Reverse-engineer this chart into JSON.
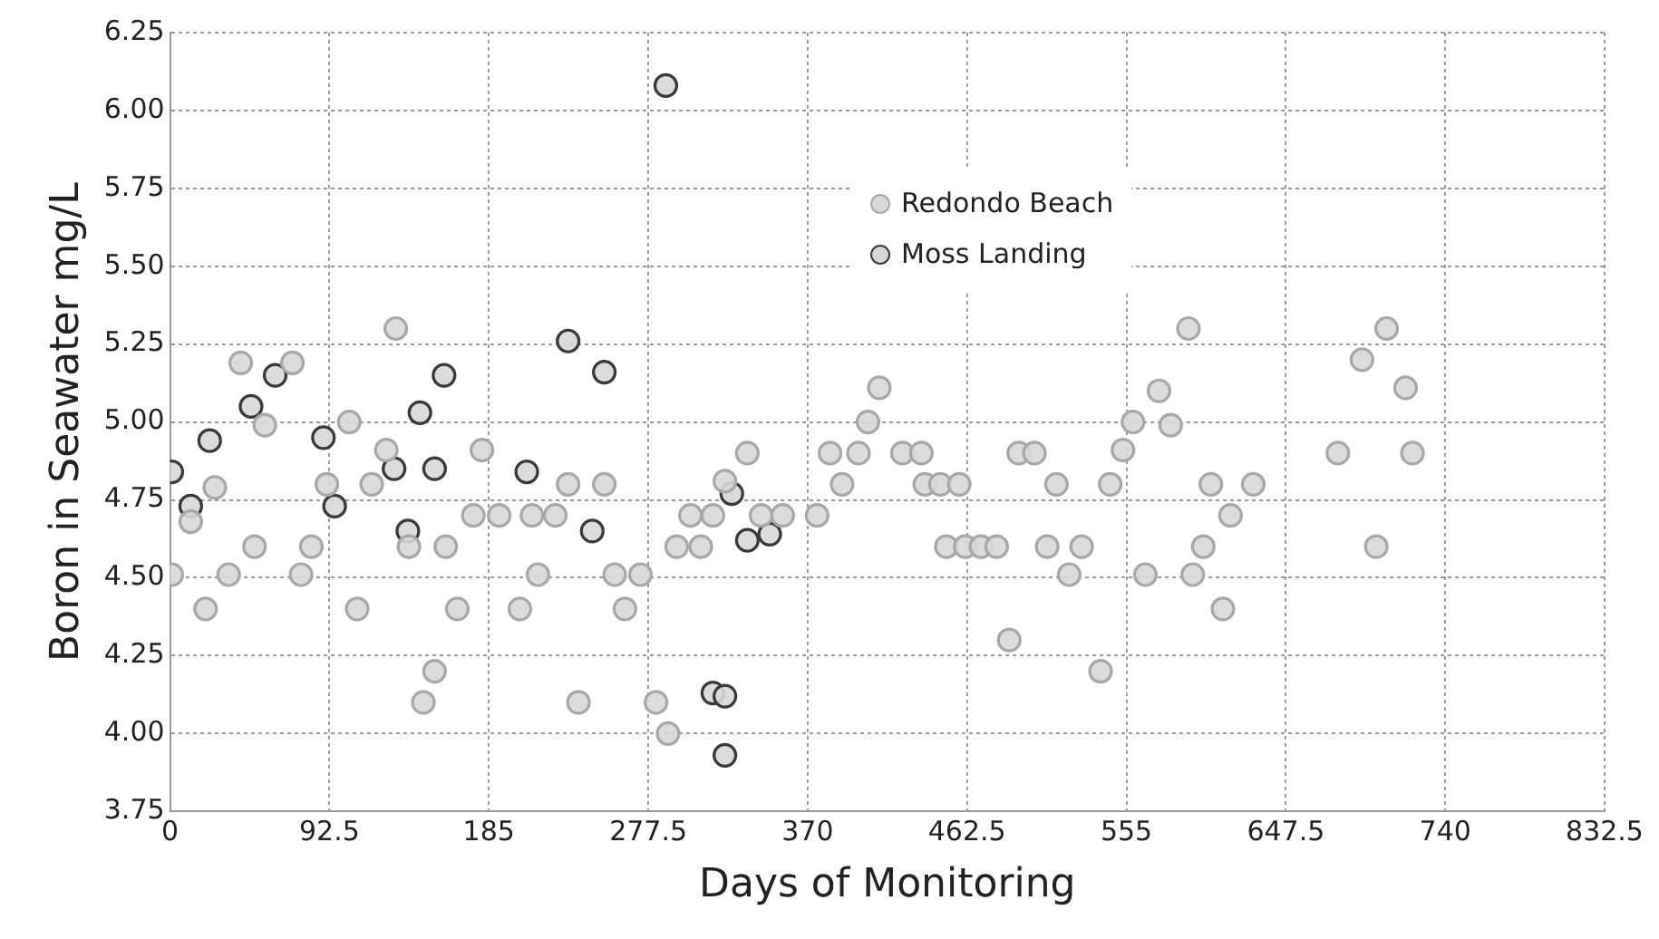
{
  "chart_data": {
    "type": "scatter",
    "xlabel": "Days of Monitoring",
    "ylabel": "Boron in Seawater mg/L",
    "xlim": [
      0,
      832.5
    ],
    "xticks": [
      0,
      92.5,
      185,
      277.5,
      370,
      462.5,
      555,
      647.5,
      740,
      832.5
    ],
    "ylim": [
      3.75,
      6.25
    ],
    "yticks": [
      3.75,
      {
        "value": 4,
        "label": "4.00"
      },
      4.25,
      {
        "value": 4.5,
        "label": "4.50"
      },
      4.75,
      {
        "value": 5,
        "label": "5.00"
      },
      5.25,
      {
        "value": 5.5,
        "label": "5.50"
      },
      5.75,
      {
        "value": 6,
        "label": "6.00"
      },
      6.25
    ],
    "grid": true,
    "legend": "top",
    "marker": "circle",
    "series": [
      {
        "name": "Redondo Beach",
        "color": "#a8a8a8",
        "x": [
          1,
          12,
          20.6,
          26,
          34,
          41,
          49,
          55,
          71,
          76,
          82,
          91,
          104,
          108.6,
          117,
          125.5,
          131,
          138.6,
          147,
          153.5,
          160,
          166.7,
          176,
          181,
          191,
          203,
          210,
          213.5,
          223.6,
          231,
          237,
          252,
          258,
          264,
          273,
          282,
          289,
          294,
          302,
          308,
          315,
          322,
          335,
          343,
          355.5,
          375.5,
          383,
          390,
          399.5,
          405,
          411.6,
          425,
          436,
          438,
          447,
          450.5,
          458,
          461.5,
          470.6,
          479.7,
          487,
          492.5,
          501.6,
          509,
          514.4,
          521.8,
          529,
          540,
          545.6,
          553,
          558.8,
          566,
          573.9,
          580.7,
          591,
          593.5,
          599.6,
          604,
          611,
          615.4,
          628.6,
          677.7,
          691.7,
          700,
          706,
          717,
          721
        ],
        "values": [
          4.51,
          4.68,
          4.4,
          4.79,
          4.51,
          5.19,
          4.6,
          4.99,
          5.19,
          4.51,
          4.6,
          4.8,
          5.0,
          4.4,
          4.8,
          4.91,
          5.3,
          4.6,
          4.1,
          4.2,
          4.6,
          4.4,
          4.7,
          4.91,
          4.7,
          4.4,
          4.7,
          4.51,
          4.7,
          4.8,
          4.1,
          4.8,
          4.51,
          4.4,
          4.51,
          4.1,
          4.0,
          4.6,
          4.7,
          4.6,
          4.7,
          4.81,
          4.9,
          4.7,
          4.7,
          4.7,
          4.9,
          4.8,
          4.9,
          5.0,
          5.11,
          4.9,
          4.9,
          4.8,
          4.8,
          4.6,
          4.8,
          4.6,
          4.6,
          4.6,
          4.3,
          4.9,
          4.9,
          4.6,
          4.8,
          4.51,
          4.6,
          4.2,
          4.8,
          4.91,
          5.0,
          4.51,
          5.1,
          4.99,
          5.3,
          4.51,
          4.6,
          4.8,
          4.4,
          4.7,
          4.8,
          4.9,
          5.2,
          4.6,
          5.3,
          5.11,
          4.9
        ]
      },
      {
        "name": "Moss Landing",
        "color": "#3a3a3a",
        "x": [
          1,
          12,
          23,
          47,
          61,
          89,
          95.5,
          130,
          138,
          145,
          153.5,
          159,
          207,
          231,
          245,
          252,
          287.7,
          315,
          322,
          322,
          326,
          335,
          348
        ],
        "values": [
          4.84,
          4.73,
          4.94,
          5.05,
          5.15,
          4.95,
          4.73,
          4.85,
          4.65,
          5.03,
          4.85,
          5.15,
          4.84,
          5.26,
          4.65,
          5.16,
          6.08,
          4.13,
          4.12,
          3.93,
          4.77,
          4.62,
          4.64
        ]
      }
    ]
  }
}
